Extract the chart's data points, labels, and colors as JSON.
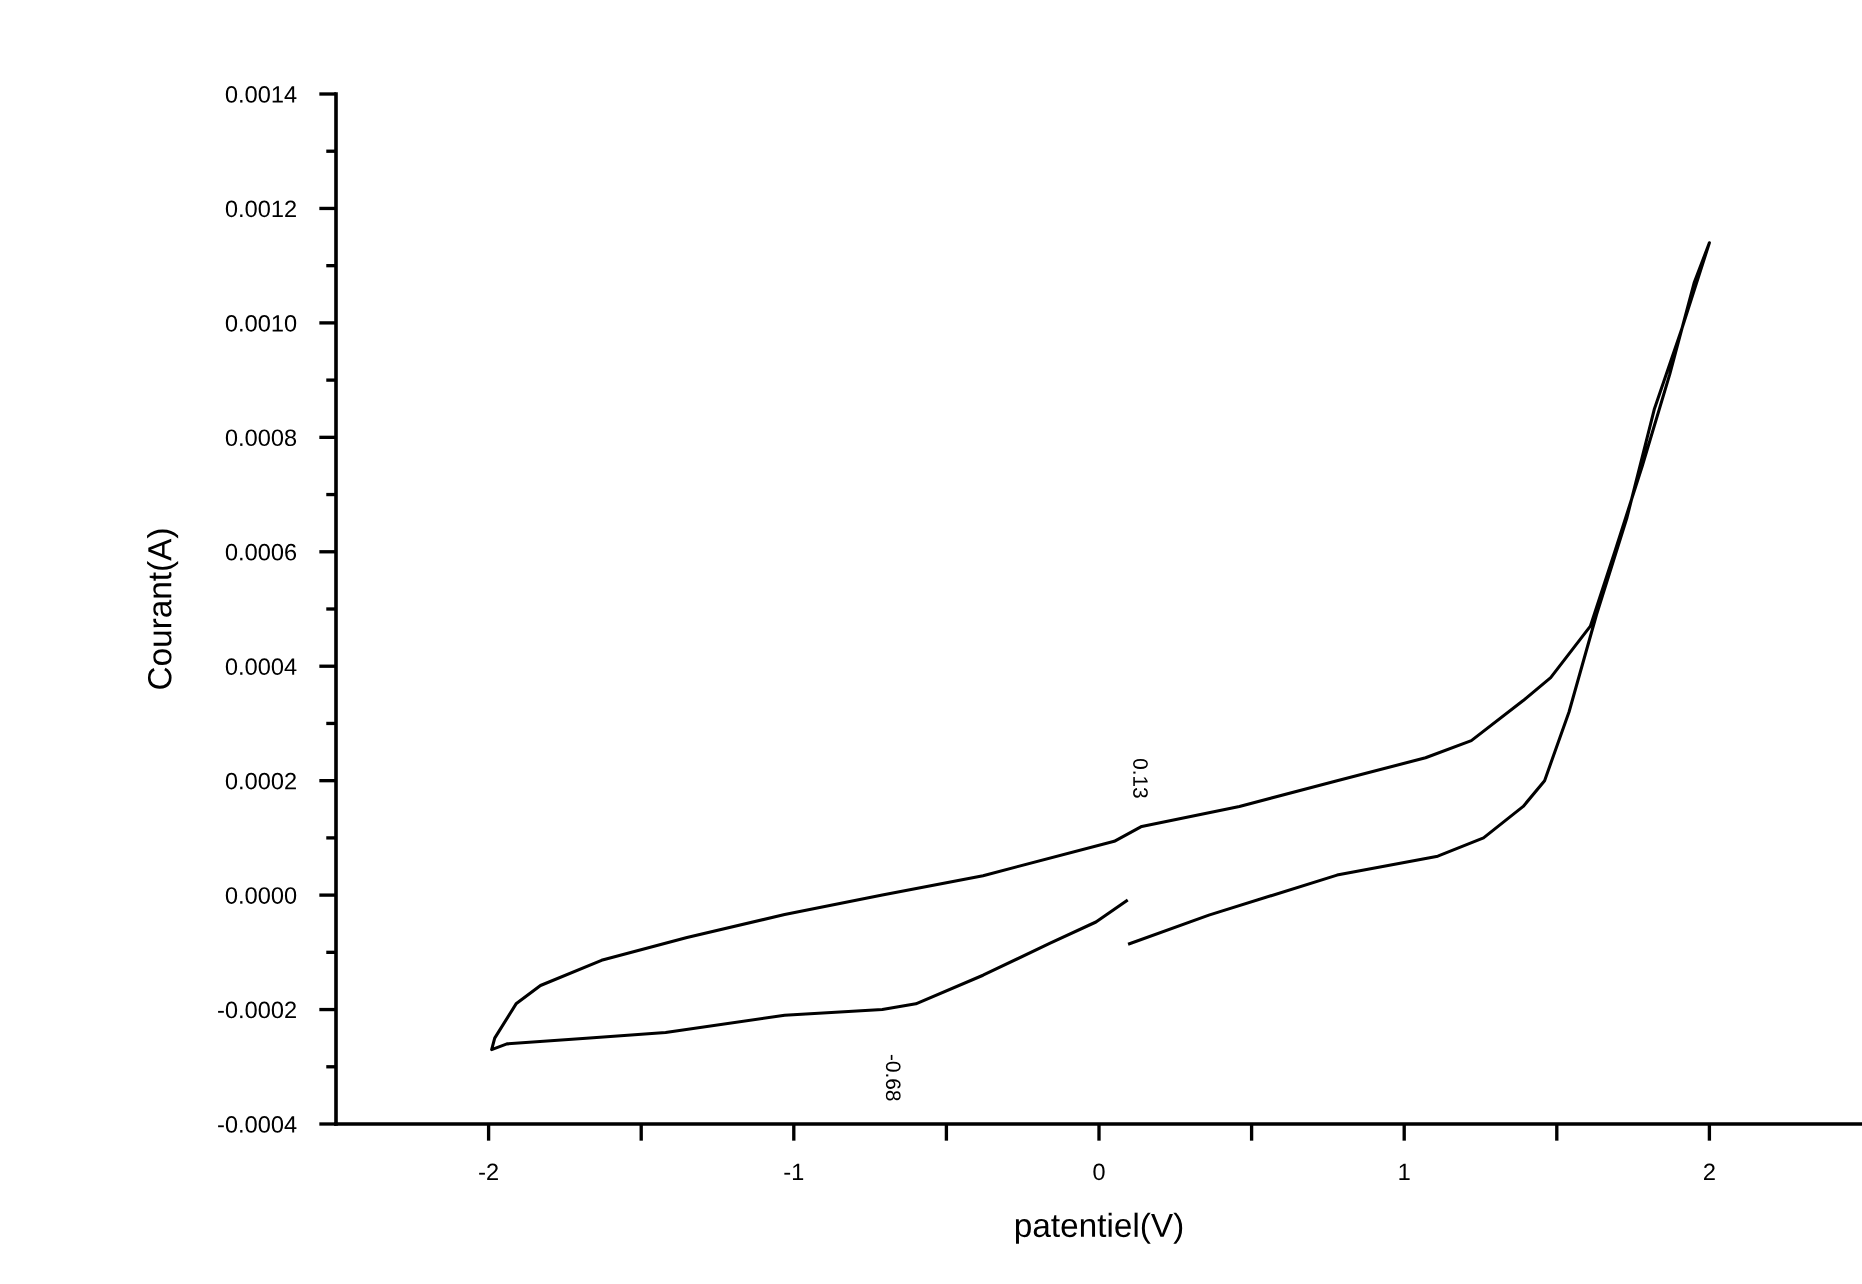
{
  "chart_data": {
    "type": "line",
    "xlabel": "patentiel(V)",
    "ylabel": "Courant(A)",
    "xlim": [
      -2.5,
      2.5
    ],
    "xticks": [
      -2,
      -1,
      0,
      1,
      2
    ],
    "ylim": [
      -0.0004,
      0.0014
    ],
    "yticks": [
      {
        "value": -0.0004,
        "label": "-0.0004"
      },
      {
        "value": -0.0002,
        "label": "-0.0002"
      },
      {
        "value": 0,
        "label": "0.0000"
      },
      {
        "value": 0.0002,
        "label": "0.0002"
      },
      {
        "value": 0.0004,
        "label": "0.0004"
      },
      {
        "value": 0.0006,
        "label": "0.0006"
      },
      {
        "value": 0.0008,
        "label": "0.0008"
      },
      {
        "value": 0.001,
        "label": "0.0010"
      },
      {
        "value": 0.0012,
        "label": "0.0012"
      },
      {
        "value": 0.0014,
        "label": "0.0014"
      }
    ],
    "grid": false,
    "legend": false,
    "marker": "none",
    "line_style": "solid",
    "series": [
      {
        "color": "#000000",
        "x": [
          0.1,
          0.36,
          0.78,
          1.11,
          1.26,
          1.39,
          1.46,
          1.54,
          1.63,
          1.73,
          1.82,
          1.91,
          2.0,
          1.95,
          1.87,
          1.78,
          1.69,
          1.61,
          1.48,
          1.39,
          1.22,
          1.07,
          0.78,
          0.46,
          0.14,
          0.05,
          -0.38,
          -0.71,
          -1.03,
          -1.35,
          -1.63,
          -1.83,
          -1.91,
          -1.98,
          -1.99,
          -1.94,
          -1.68,
          -1.42,
          -1.03,
          -0.71,
          -0.6,
          -0.38,
          -0.16,
          -0.01,
          0.09
        ],
        "values": [
          -8.5e-05,
          -3.5e-05,
          3.5e-05,
          6.8e-05,
          0.0001,
          0.000155,
          0.0002,
          0.00032,
          0.00049,
          0.00066,
          0.00085,
          0.00099,
          0.00114,
          0.00107,
          0.00091,
          0.00075,
          0.0006,
          0.00047,
          0.00038,
          0.00034,
          0.00027,
          0.00024,
          0.0002,
          0.000155,
          0.00012,
          9.4e-05,
          3.4e-05,
          0.0,
          -3.4e-05,
          -7.4e-05,
          -0.000114,
          -0.000158,
          -0.00019,
          -0.00025,
          -0.00027,
          -0.00026,
          -0.00025,
          -0.00024,
          -0.00021,
          -0.0002,
          -0.00019,
          -0.00014,
          -8.4e-05,
          -4.7e-05,
          -1e-05
        ]
      }
    ],
    "annotations": [
      {
        "text": "0.13",
        "x": 0.13,
        "y": 0.00012
      },
      {
        "text": "-0.68",
        "x": -0.68,
        "y": -0.0002
      }
    ]
  }
}
